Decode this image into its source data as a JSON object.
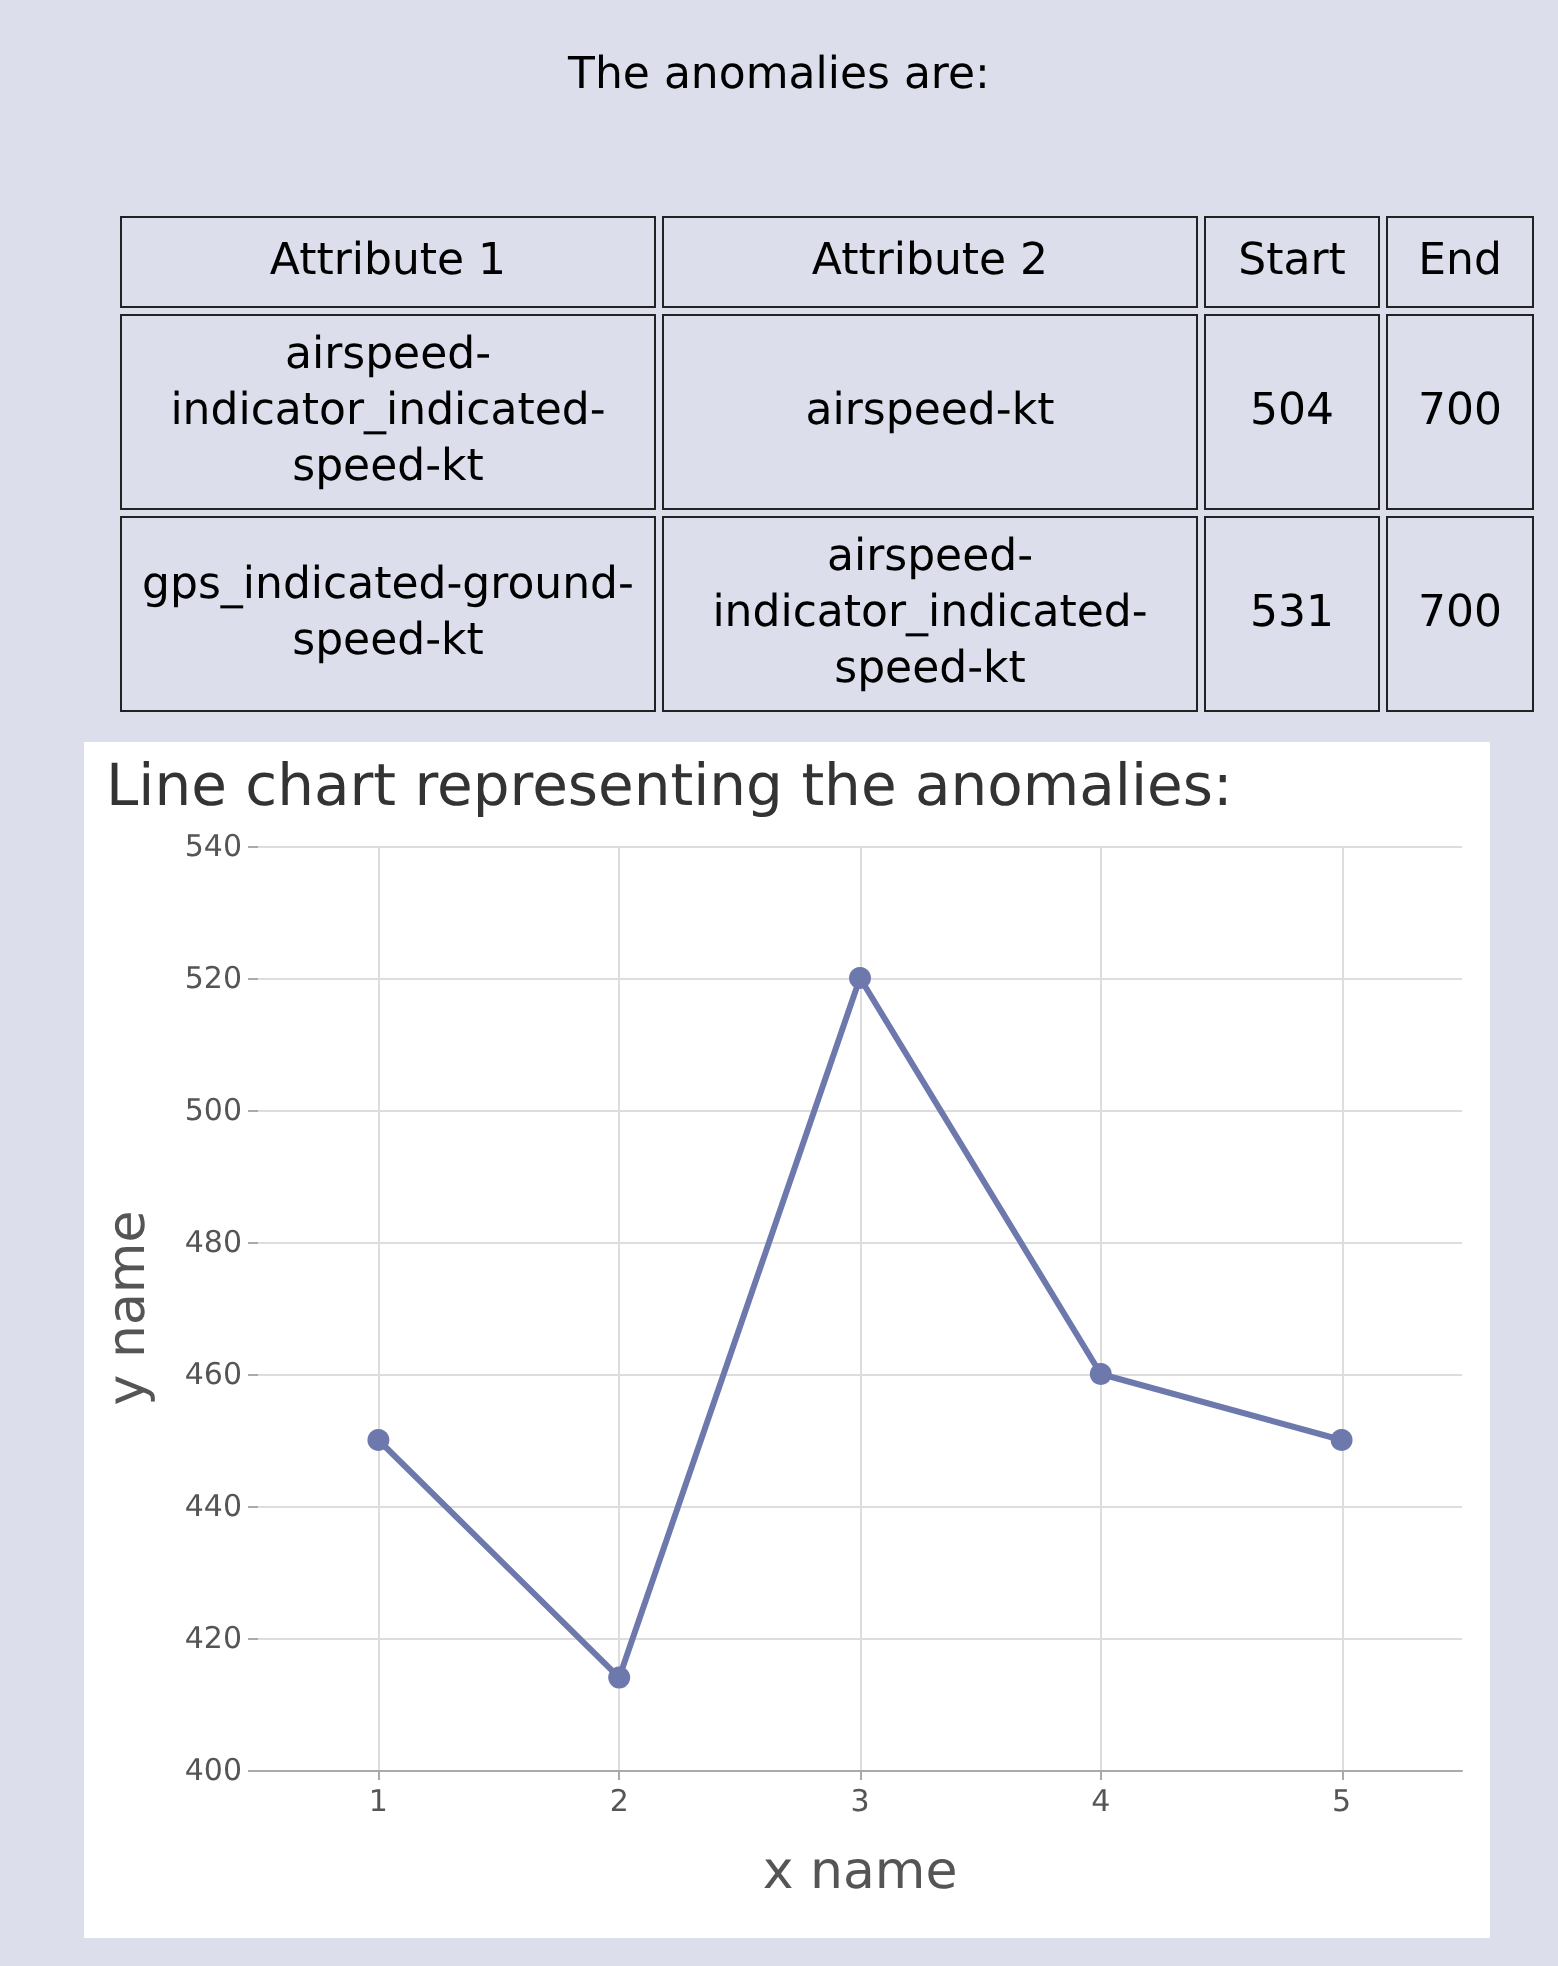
{
  "chart_data": [
    {
      "type": "other",
      "title": "The anomalies are:",
      "annotations": [
        "Attribute 1",
        "Attribute 2",
        "Start",
        "End",
        "airspeed-indicator_indicated-speed-kt",
        "airspeed-kt",
        "504",
        "700",
        "gps_indicated-ground-speed-kt",
        "airspeed-indicator_indicated-speed-kt",
        "531",
        "700"
      ]
    },
    {
      "type": "line",
      "title": "Line chart representing the anomalies:",
      "xlabel": "x name",
      "ylabel": "y name",
      "x": [
        1,
        2,
        3,
        4,
        5
      ],
      "series": [
        {
          "color": "#6d78ad",
          "values": [
            450,
            414,
            520,
            460,
            450
          ]
        }
      ],
      "xlim": [
        0.5,
        5.5
      ],
      "xticks": [
        1,
        2,
        3,
        4,
        5
      ],
      "ylim": [
        400,
        540
      ],
      "yticks": [
        400,
        420,
        440,
        460,
        480,
        500,
        520,
        540
      ],
      "grid": true,
      "marker": "circle",
      "line_style": "solid"
    }
  ]
}
